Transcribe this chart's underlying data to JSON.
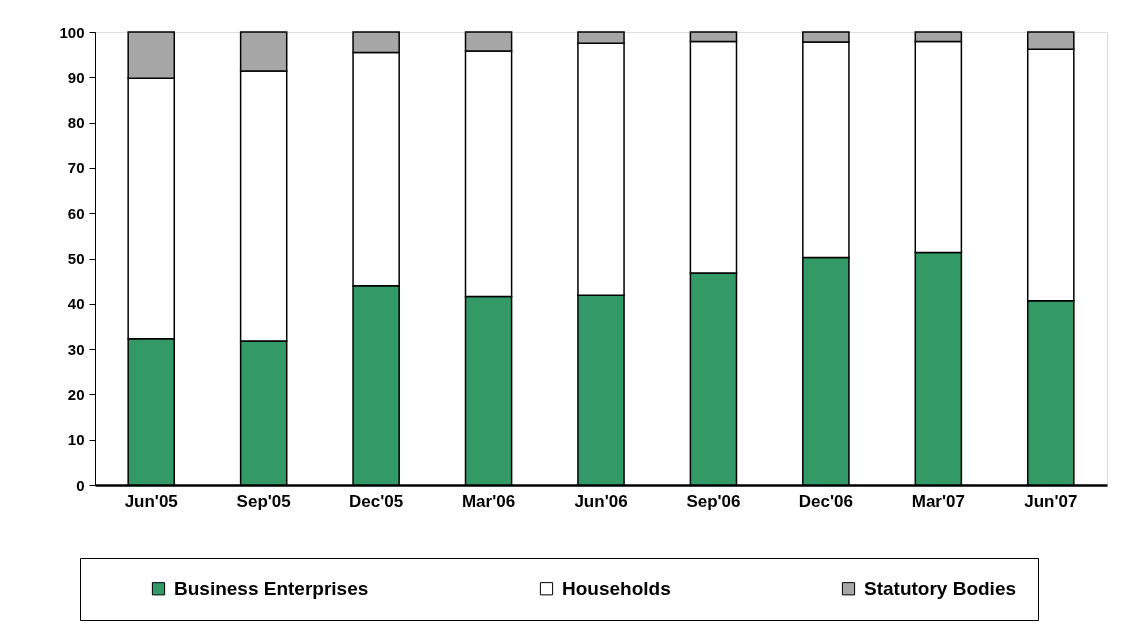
{
  "chart_data": {
    "type": "bar",
    "stacked": true,
    "categories": [
      "Jun'05",
      "Sep'05",
      "Dec'05",
      "Mar'06",
      "Jun'06",
      "Sep'06",
      "Dec'06",
      "Mar'07",
      "Jun'07"
    ],
    "series": [
      {
        "name": "Business Enterprises",
        "color": "#339966",
        "values": [
          32.3,
          31.8,
          44.0,
          41.6,
          41.9,
          46.8,
          50.2,
          51.3,
          40.7
        ]
      },
      {
        "name": "Households",
        "color": "#ffffff",
        "values": [
          57.5,
          59.6,
          51.5,
          54.2,
          55.6,
          51.1,
          47.6,
          46.6,
          55.5
        ]
      },
      {
        "name": "Statutory Bodies",
        "color": "#a6a6a6",
        "values": [
          10.2,
          8.6,
          4.5,
          4.2,
          2.5,
          2.1,
          2.2,
          2.1,
          3.8
        ]
      }
    ],
    "ylim": [
      0,
      100
    ],
    "yticks": [
      0,
      10,
      20,
      30,
      40,
      50,
      60,
      70,
      80,
      90,
      100
    ],
    "grid": false,
    "legend": "bottom"
  }
}
